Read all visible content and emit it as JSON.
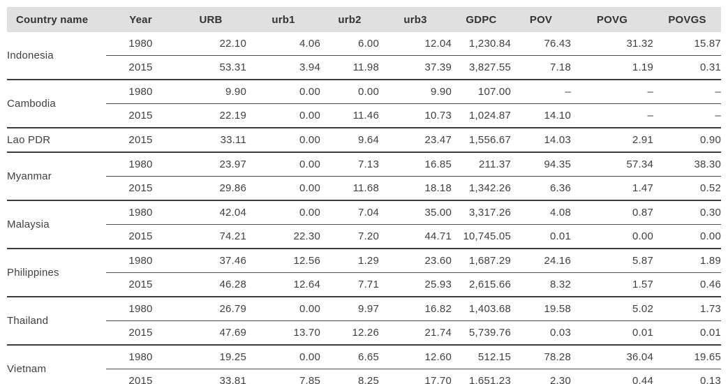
{
  "table": {
    "columns": [
      "Country name",
      "Year",
      "URB",
      "urb1",
      "urb2",
      "urb3",
      "GDPC",
      "POV",
      "POVG",
      "POVGS"
    ],
    "missing_value_symbol": "–",
    "colors": {
      "header_background": "#e0e0e0",
      "text": "#404040",
      "rule": "#3b3b3b"
    },
    "groups": [
      {
        "country": "Indonesia",
        "rows": [
          [
            "1980",
            "22.10",
            "4.06",
            "6.00",
            "12.04",
            "1,230.84",
            "76.43",
            "31.32",
            "15.87"
          ],
          [
            "2015",
            "53.31",
            "3.94",
            "11.98",
            "37.39",
            "3,827.55",
            "7.18",
            "1.19",
            "0.31"
          ]
        ]
      },
      {
        "country": "Cambodia",
        "rows": [
          [
            "1980",
            "9.90",
            "0.00",
            "0.00",
            "9.90",
            "107.00",
            "–",
            "–",
            "–"
          ],
          [
            "2015",
            "22.19",
            "0.00",
            "11.46",
            "10.73",
            "1,024.87",
            "14.10",
            "–",
            "–"
          ]
        ]
      },
      {
        "country": "Lao PDR",
        "rows": [
          [
            "2015",
            "33.11",
            "0.00",
            "9.64",
            "23.47",
            "1,556.67",
            "14.03",
            "2.91",
            "0.90"
          ]
        ]
      },
      {
        "country": "Myanmar",
        "rows": [
          [
            "1980",
            "23.97",
            "0.00",
            "7.13",
            "16.85",
            "211.37",
            "94.35",
            "57.34",
            "38.30"
          ],
          [
            "2015",
            "29.86",
            "0.00",
            "11.68",
            "18.18",
            "1,342.26",
            "6.36",
            "1.47",
            "0.52"
          ]
        ]
      },
      {
        "country": "Malaysia",
        "rows": [
          [
            "1980",
            "42.04",
            "0.00",
            "7.04",
            "35.00",
            "3,317.26",
            "4.08",
            "0.87",
            "0.30"
          ],
          [
            "2015",
            "74.21",
            "22.30",
            "7.20",
            "44.71",
            "10,745.05",
            "0.01",
            "0.00",
            "0.00"
          ]
        ]
      },
      {
        "country": "Philippines",
        "rows": [
          [
            "1980",
            "37.46",
            "12.56",
            "1.29",
            "23.60",
            "1,687.29",
            "24.16",
            "5.87",
            "1.89"
          ],
          [
            "2015",
            "46.28",
            "12.64",
            "7.71",
            "25.93",
            "2,615.66",
            "8.32",
            "1.57",
            "0.46"
          ]
        ]
      },
      {
        "country": "Thailand",
        "rows": [
          [
            "1980",
            "26.79",
            "0.00",
            "9.97",
            "16.82",
            "1,403.68",
            "19.58",
            "5.02",
            "1.73"
          ],
          [
            "2015",
            "47.69",
            "13.70",
            "12.26",
            "21.74",
            "5,739.76",
            "0.03",
            "0.01",
            "0.01"
          ]
        ]
      },
      {
        "country": "Vietnam",
        "rows": [
          [
            "1980",
            "19.25",
            "0.00",
            "6.65",
            "12.60",
            "512.15",
            "78.28",
            "36.04",
            "19.65"
          ],
          [
            "2015",
            "33.81",
            "7.85",
            "8.25",
            "17.70",
            "1,651.23",
            "2.30",
            "0.44",
            "0.13"
          ]
        ]
      }
    ]
  }
}
